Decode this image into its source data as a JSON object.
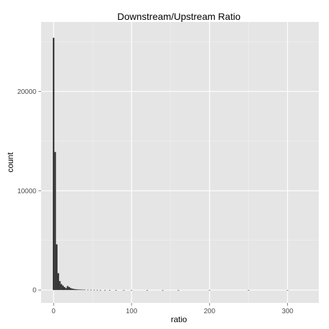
{
  "chart_data": {
    "type": "bar",
    "title": "Downstream/Upstream Ratio",
    "xlabel": "ratio",
    "ylabel": "count",
    "xlim": [
      -16,
      340
    ],
    "ylim": [
      -1300,
      27000
    ],
    "x_ticks": [
      0,
      100,
      200,
      300
    ],
    "y_ticks": [
      0,
      10000,
      20000
    ],
    "grid": true,
    "bin_width": 2,
    "bars": [
      {
        "x": 0,
        "count": 25400
      },
      {
        "x": 2,
        "count": 13900
      },
      {
        "x": 4,
        "count": 4600
      },
      {
        "x": 6,
        "count": 1700
      },
      {
        "x": 8,
        "count": 900
      },
      {
        "x": 10,
        "count": 600
      },
      {
        "x": 12,
        "count": 450
      },
      {
        "x": 14,
        "count": 300
      },
      {
        "x": 16,
        "count": 200
      },
      {
        "x": 18,
        "count": 400
      },
      {
        "x": 20,
        "count": 300
      },
      {
        "x": 22,
        "count": 200
      },
      {
        "x": 24,
        "count": 150
      },
      {
        "x": 26,
        "count": 110
      },
      {
        "x": 28,
        "count": 90
      },
      {
        "x": 30,
        "count": 70
      },
      {
        "x": 32,
        "count": 60
      },
      {
        "x": 34,
        "count": 50
      },
      {
        "x": 36,
        "count": 45
      },
      {
        "x": 38,
        "count": 40
      },
      {
        "x": 40,
        "count": 35
      },
      {
        "x": 44,
        "count": 30
      },
      {
        "x": 48,
        "count": 25
      },
      {
        "x": 52,
        "count": 20
      },
      {
        "x": 56,
        "count": 18
      },
      {
        "x": 60,
        "count": 15
      },
      {
        "x": 66,
        "count": 12
      },
      {
        "x": 72,
        "count": 10
      },
      {
        "x": 80,
        "count": 8
      },
      {
        "x": 90,
        "count": 6
      },
      {
        "x": 100,
        "count": 5
      },
      {
        "x": 120,
        "count": 4
      },
      {
        "x": 140,
        "count": 3
      },
      {
        "x": 160,
        "count": 2
      },
      {
        "x": 200,
        "count": 2
      },
      {
        "x": 250,
        "count": 1
      },
      {
        "x": 300,
        "count": 1
      }
    ]
  },
  "colors": {
    "panel_bg": "#e5e5e5",
    "grid_major": "#ffffff",
    "grid_minor": "#f2f2f2",
    "bar_fill": "#333333"
  }
}
